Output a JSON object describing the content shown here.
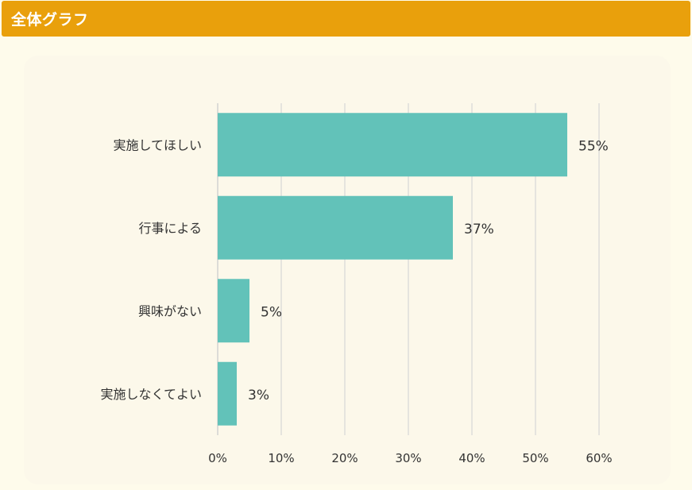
{
  "header": {
    "title": "全体グラフ"
  },
  "colors": {
    "header_bg": "#e9a00c",
    "bar": "#62c2b9",
    "panel": "#fcf8ea",
    "page": "#fefbeb"
  },
  "chart_data": {
    "type": "bar",
    "orientation": "horizontal",
    "categories": [
      "実施してほしい",
      "行事による",
      "興味がない",
      "実施しなくてよい"
    ],
    "values": [
      55,
      37,
      5,
      3
    ],
    "value_labels": [
      "55%",
      "37%",
      "5%",
      "3%"
    ],
    "x_ticks": [
      "0%",
      "10%",
      "20%",
      "30%",
      "40%",
      "50%",
      "60%"
    ],
    "xlim": [
      0,
      60
    ],
    "grid": true,
    "title": "",
    "xlabel": "",
    "ylabel": ""
  }
}
